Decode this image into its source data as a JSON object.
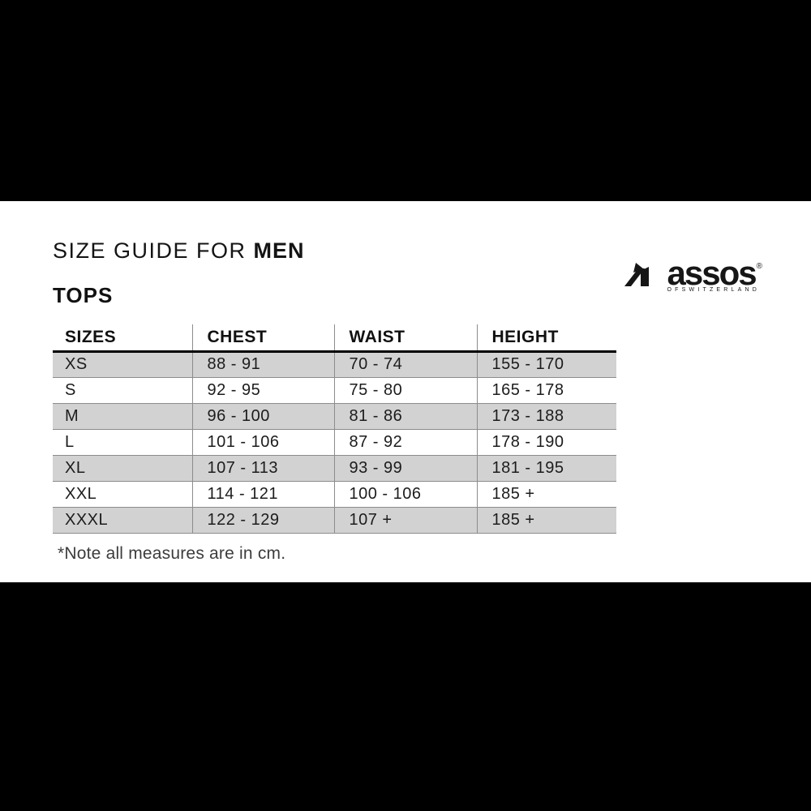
{
  "header": {
    "title_prefix": "SIZE GUIDE FOR",
    "title_emphasis": "MEN",
    "subtitle": "TOPS"
  },
  "logo": {
    "brand": "assos",
    "registered_symbol": "®",
    "tagline": "OFSWITZERLAND"
  },
  "table": {
    "headers": [
      "SIZES",
      "CHEST",
      "WAIST",
      "HEIGHT"
    ],
    "rows": [
      [
        "XS",
        "88 - 91",
        "70 - 74",
        "155 - 170"
      ],
      [
        "S",
        "92 - 95",
        "75 - 80",
        "165 - 178"
      ],
      [
        "M",
        "96 - 100",
        "81 - 86",
        "173 - 188"
      ],
      [
        "L",
        "101 - 106",
        "87 - 92",
        "178 - 190"
      ],
      [
        "XL",
        "107 - 113",
        "93 - 99",
        "181 - 195"
      ],
      [
        "XXL",
        "114 - 121",
        "100 - 106",
        "185 +"
      ],
      [
        "XXXL",
        "122 - 129",
        "107 +",
        "185 +"
      ]
    ]
  },
  "footnote": "*Note all measures are in cm.",
  "colors": {
    "background_bars": "#000000",
    "content_background": "#ffffff",
    "row_shade": "#d2d2d2",
    "table_line": "#8c8c8c",
    "text": "#1a1a1a"
  }
}
